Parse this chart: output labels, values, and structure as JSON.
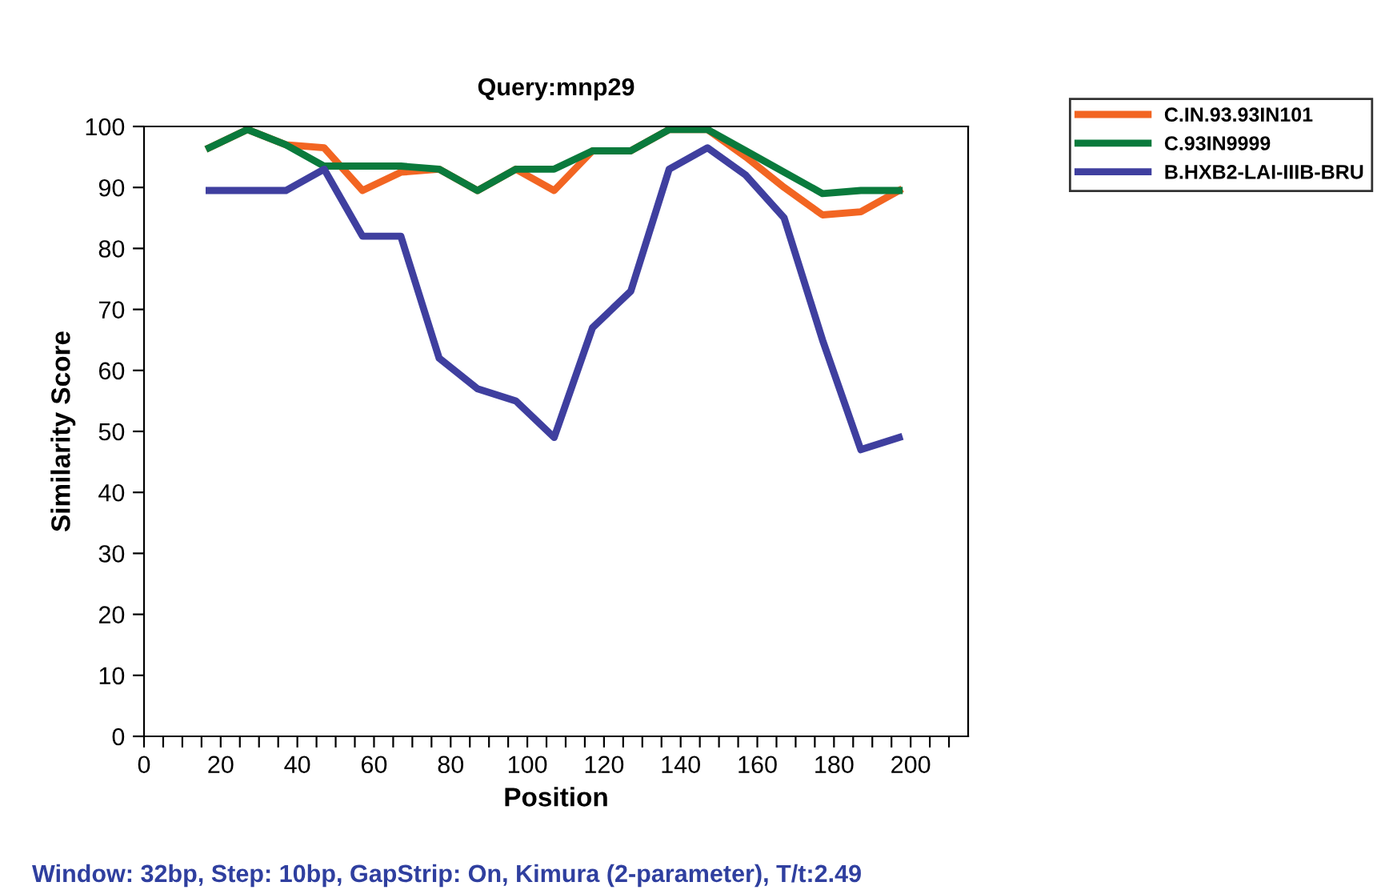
{
  "chart_data": {
    "type": "line",
    "title": "Query:mnp29",
    "xlabel": "Position",
    "ylabel": "Similarity Score",
    "x": [
      17,
      27,
      37,
      47,
      57,
      67,
      77,
      87,
      97,
      107,
      117,
      127,
      137,
      147,
      157,
      167,
      177,
      187,
      197
    ],
    "series": [
      {
        "name": "C.IN.93.93IN101",
        "color": "#f26522",
        "values": [
          96.5,
          99.5,
          97,
          96.5,
          89.5,
          92.5,
          93,
          89.5,
          93,
          89.5,
          96,
          96,
          99.5,
          99.5,
          95,
          90,
          85.5,
          86,
          89.5
        ]
      },
      {
        "name": "C.93IN9999",
        "color": "#0a7a3c",
        "values": [
          96.5,
          99.5,
          97,
          93.5,
          93.5,
          93.5,
          93,
          89.5,
          93,
          93,
          96,
          96,
          99.5,
          99.5,
          96,
          92.5,
          89,
          89.5,
          89.5
        ]
      },
      {
        "name": "B.HXB2-LAI-IIIB-BRU",
        "color": "#3f3f9f",
        "values": [
          89.5,
          89.5,
          89.5,
          93,
          82,
          82,
          62,
          57,
          55,
          49,
          67,
          73,
          93,
          96.5,
          92,
          85,
          65,
          47,
          49
        ]
      }
    ],
    "xlim": [
      0,
      215
    ],
    "ylim": [
      0,
      100
    ],
    "xticks": [
      0,
      {
        "value": 5,
        "label": null
      },
      {
        "value": 10,
        "label": null
      },
      {
        "value": 15,
        "label": null
      },
      20,
      {
        "value": 25,
        "label": null
      },
      {
        "value": 30,
        "label": null
      },
      {
        "value": 35,
        "label": null
      },
      40,
      {
        "value": 45,
        "label": null
      },
      {
        "value": 50,
        "label": null
      },
      {
        "value": 55,
        "label": null
      },
      60,
      {
        "value": 65,
        "label": null
      },
      {
        "value": 70,
        "label": null
      },
      {
        "value": 75,
        "label": null
      },
      80,
      {
        "value": 85,
        "label": null
      },
      {
        "value": 90,
        "label": null
      },
      {
        "value": 95,
        "label": null
      },
      100,
      {
        "value": 105,
        "label": null
      },
      {
        "value": 110,
        "label": null
      },
      {
        "value": 115,
        "label": null
      },
      120,
      {
        "value": 125,
        "label": null
      },
      {
        "value": 130,
        "label": null
      },
      {
        "value": 135,
        "label": null
      },
      140,
      {
        "value": 145,
        "label": null
      },
      {
        "value": 150,
        "label": null
      },
      {
        "value": 155,
        "label": null
      },
      160,
      {
        "value": 165,
        "label": null
      },
      {
        "value": 170,
        "label": null
      },
      {
        "value": 175,
        "label": null
      },
      180,
      {
        "value": 185,
        "label": null
      },
      {
        "value": 190,
        "label": null
      },
      {
        "value": 195,
        "label": null
      },
      200,
      {
        "value": 205,
        "label": null
      },
      {
        "value": 210,
        "label": null
      }
    ],
    "yticks": [
      0,
      10,
      20,
      30,
      40,
      50,
      60,
      70,
      80,
      90,
      100
    ],
    "grid": false,
    "legend": "top right",
    "marker": "none",
    "line_style": "solid",
    "annotations": [
      "Window: 32bp, Step: 10bp, GapStrip: On, Kimura (2-parameter), T/t:2.49"
    ]
  }
}
